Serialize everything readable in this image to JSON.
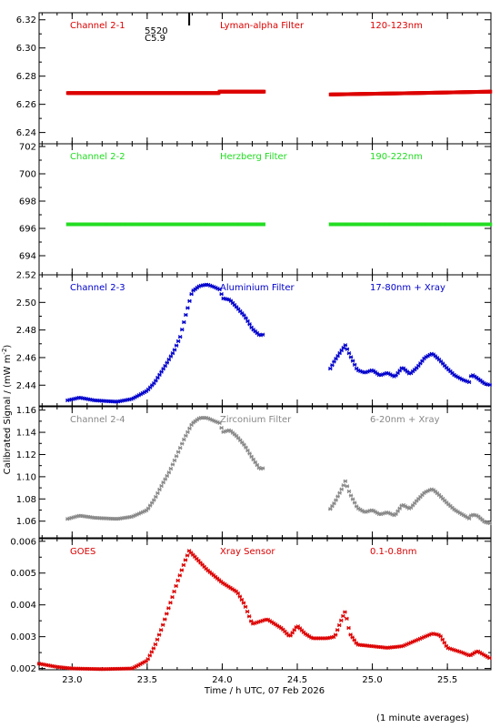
{
  "figure": {
    "ylabel": "Calibrated Signal / (mW m",
    "ylabel_sup": "-2",
    "ylabel_close": ")",
    "xlabel": "Time / h UTC, 07 Feb 2026",
    "footnote": "(1 minute averages)",
    "x_ticks": [
      "23.0",
      "23.5",
      "24.0",
      "24.5",
      "25.0",
      "25.5"
    ],
    "xlim": [
      22.78,
      25.79
    ],
    "event_marker": {
      "x": 23.78,
      "label_top": "5520",
      "label_bottom": "C5.9"
    }
  },
  "chart_data": [
    {
      "type": "scatter",
      "channel": "Channel 2-1",
      "filter": "Lyman-alpha Filter",
      "band": "120-123nm",
      "color": "#dd0000",
      "ylim": [
        6.232,
        6.325
      ],
      "y_ticks": [
        "6.24",
        "6.26",
        "6.28",
        "6.30",
        "6.32"
      ],
      "segments": [
        {
          "x_start": 22.97,
          "x_end": 23.98,
          "points": [
            [
              22.97,
              6.268
            ],
            [
              23.98,
              6.268
            ]
          ]
        },
        {
          "x_start": 23.98,
          "x_end": 24.28,
          "points": [
            [
              23.98,
              6.269
            ],
            [
              24.28,
              6.269
            ]
          ]
        },
        {
          "x_start": 24.72,
          "x_end": 25.79,
          "points": [
            [
              24.72,
              6.267
            ],
            [
              25.3,
              6.268
            ],
            [
              25.79,
              6.269
            ]
          ]
        }
      ]
    },
    {
      "type": "scatter",
      "channel": "Channel 2-2",
      "filter": "Herzberg Filter",
      "band": "190-222nm",
      "color": "#22dd22",
      "ylim": [
        692.6,
        702.2
      ],
      "y_ticks": [
        "694",
        "696",
        "698",
        "700",
        "702"
      ],
      "segments": [
        {
          "x_start": 22.97,
          "x_end": 24.28,
          "points": [
            [
              22.97,
              696.3
            ],
            [
              24.28,
              696.3
            ]
          ]
        },
        {
          "x_start": 24.72,
          "x_end": 25.79,
          "points": [
            [
              24.72,
              696.3
            ],
            [
              25.79,
              696.3
            ]
          ]
        }
      ]
    },
    {
      "type": "scatter",
      "channel": "Channel 2-3",
      "filter": "Aluminium Filter",
      "band": "17-80nm + Xray",
      "color": "#0000cc",
      "ylim": [
        2.425,
        2.52
      ],
      "y_ticks": [
        "2.44",
        "2.46",
        "2.48",
        "2.50",
        "2.52"
      ],
      "segments": [
        {
          "x_start": 22.97,
          "x_end": 24.28,
          "points": [
            [
              22.97,
              2.429
            ],
            [
              23.05,
              2.431
            ],
            [
              23.15,
              2.429
            ],
            [
              23.3,
              2.428
            ],
            [
              23.4,
              2.43
            ],
            [
              23.5,
              2.436
            ],
            [
              23.55,
              2.442
            ],
            [
              23.62,
              2.454
            ],
            [
              23.68,
              2.465
            ],
            [
              23.72,
              2.475
            ],
            [
              23.76,
              2.492
            ],
            [
              23.8,
              2.508
            ],
            [
              23.85,
              2.512
            ],
            [
              23.9,
              2.513
            ],
            [
              23.95,
              2.511
            ],
            [
              23.99,
              2.509
            ],
            [
              24.0,
              2.503
            ],
            [
              24.05,
              2.502
            ],
            [
              24.1,
              2.496
            ],
            [
              24.15,
              2.49
            ],
            [
              24.2,
              2.481
            ],
            [
              24.25,
              2.476
            ],
            [
              24.28,
              2.477
            ]
          ]
        },
        {
          "x_start": 24.72,
          "x_end": 25.79,
          "points": [
            [
              24.72,
              2.452
            ],
            [
              24.75,
              2.458
            ],
            [
              24.8,
              2.466
            ],
            [
              24.82,
              2.469
            ],
            [
              24.85,
              2.462
            ],
            [
              24.9,
              2.451
            ],
            [
              24.95,
              2.449
            ],
            [
              25.0,
              2.451
            ],
            [
              25.05,
              2.447
            ],
            [
              25.1,
              2.449
            ],
            [
              25.15,
              2.446
            ],
            [
              25.2,
              2.453
            ],
            [
              25.25,
              2.448
            ],
            [
              25.3,
              2.453
            ],
            [
              25.35,
              2.46
            ],
            [
              25.4,
              2.463
            ],
            [
              25.45,
              2.458
            ],
            [
              25.5,
              2.452
            ],
            [
              25.55,
              2.447
            ],
            [
              25.6,
              2.444
            ],
            [
              25.65,
              2.442
            ],
            [
              25.66,
              2.448
            ],
            [
              25.7,
              2.445
            ],
            [
              25.75,
              2.441
            ],
            [
              25.79,
              2.44
            ]
          ]
        }
      ]
    },
    {
      "type": "scatter",
      "channel": "Channel 2-4",
      "filter": "Zirconium Filter",
      "band": "6-20nm + Xray",
      "color": "#888888",
      "ylim": [
        1.045,
        1.163
      ],
      "y_ticks": [
        "1.06",
        "1.08",
        "1.10",
        "1.12",
        "1.14",
        "1.16"
      ],
      "segments": [
        {
          "x_start": 22.97,
          "x_end": 24.28,
          "points": [
            [
              22.97,
              1.062
            ],
            [
              23.05,
              1.065
            ],
            [
              23.15,
              1.063
            ],
            [
              23.3,
              1.062
            ],
            [
              23.4,
              1.064
            ],
            [
              23.5,
              1.07
            ],
            [
              23.55,
              1.08
            ],
            [
              23.6,
              1.093
            ],
            [
              23.65,
              1.105
            ],
            [
              23.7,
              1.12
            ],
            [
              23.75,
              1.135
            ],
            [
              23.8,
              1.148
            ],
            [
              23.85,
              1.153
            ],
            [
              23.9,
              1.153
            ],
            [
              23.95,
              1.15
            ],
            [
              23.99,
              1.148
            ],
            [
              24.0,
              1.14
            ],
            [
              24.05,
              1.142
            ],
            [
              24.1,
              1.136
            ],
            [
              24.15,
              1.128
            ],
            [
              24.2,
              1.117
            ],
            [
              24.25,
              1.107
            ],
            [
              24.28,
              1.108
            ]
          ]
        },
        {
          "x_start": 24.72,
          "x_end": 25.79,
          "points": [
            [
              24.72,
              1.071
            ],
            [
              24.75,
              1.077
            ],
            [
              24.8,
              1.09
            ],
            [
              24.82,
              1.096
            ],
            [
              24.85,
              1.085
            ],
            [
              24.9,
              1.072
            ],
            [
              24.95,
              1.068
            ],
            [
              25.0,
              1.07
            ],
            [
              25.05,
              1.066
            ],
            [
              25.1,
              1.068
            ],
            [
              25.15,
              1.065
            ],
            [
              25.2,
              1.075
            ],
            [
              25.25,
              1.071
            ],
            [
              25.3,
              1.079
            ],
            [
              25.35,
              1.086
            ],
            [
              25.4,
              1.089
            ],
            [
              25.45,
              1.083
            ],
            [
              25.5,
              1.076
            ],
            [
              25.55,
              1.07
            ],
            [
              25.6,
              1.066
            ],
            [
              25.65,
              1.062
            ],
            [
              25.66,
              1.066
            ],
            [
              25.7,
              1.065
            ],
            [
              25.75,
              1.059
            ],
            [
              25.79,
              1.058
            ]
          ]
        }
      ]
    },
    {
      "type": "scatter",
      "channel": "GOES",
      "filter": "Xray Sensor",
      "band": "0.1-0.8nm",
      "color": "#dd0000",
      "ylim": [
        0.00196,
        0.00608
      ],
      "y_ticks": [
        "0.002",
        "0.003",
        "0.004",
        "0.005",
        "0.006"
      ],
      "segments": [
        {
          "x_start": 22.78,
          "x_end": 25.79,
          "points": [
            [
              22.78,
              0.00215
            ],
            [
              22.9,
              0.00205
            ],
            [
              23.0,
              0.002
            ],
            [
              23.2,
              0.00198
            ],
            [
              23.4,
              0.002
            ],
            [
              23.5,
              0.00225
            ],
            [
              23.55,
              0.0027
            ],
            [
              23.6,
              0.0033
            ],
            [
              23.65,
              0.004
            ],
            [
              23.7,
              0.0047
            ],
            [
              23.75,
              0.00535
            ],
            [
              23.78,
              0.0057
            ],
            [
              23.82,
              0.0055
            ],
            [
              23.9,
              0.0051
            ],
            [
              24.0,
              0.0047
            ],
            [
              24.1,
              0.0044
            ],
            [
              24.15,
              0.004
            ],
            [
              24.2,
              0.0034
            ],
            [
              24.3,
              0.00355
            ],
            [
              24.4,
              0.00325
            ],
            [
              24.45,
              0.003
            ],
            [
              24.5,
              0.00335
            ],
            [
              24.55,
              0.0031
            ],
            [
              24.6,
              0.00295
            ],
            [
              24.7,
              0.00295
            ],
            [
              24.75,
              0.003
            ],
            [
              24.8,
              0.0036
            ],
            [
              24.82,
              0.0038
            ],
            [
              24.85,
              0.0031
            ],
            [
              24.9,
              0.00275
            ],
            [
              25.0,
              0.0027
            ],
            [
              25.1,
              0.00265
            ],
            [
              25.2,
              0.0027
            ],
            [
              25.3,
              0.0029
            ],
            [
              25.4,
              0.0031
            ],
            [
              25.45,
              0.00305
            ],
            [
              25.5,
              0.00265
            ],
            [
              25.6,
              0.0025
            ],
            [
              25.65,
              0.0024
            ],
            [
              25.7,
              0.00255
            ],
            [
              25.79,
              0.0023
            ]
          ]
        }
      ]
    }
  ]
}
